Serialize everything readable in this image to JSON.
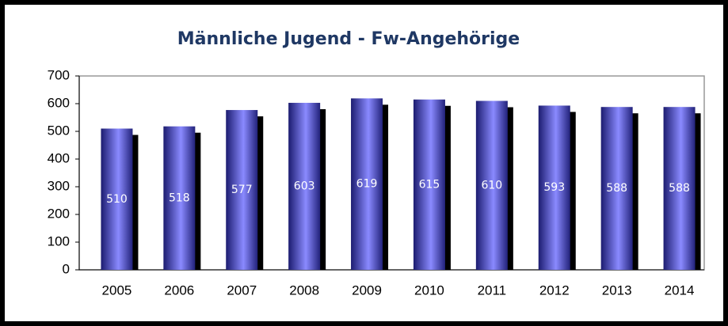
{
  "chart_data": {
    "type": "bar",
    "title": "Männliche Jugend -  Fw-Angehörige",
    "categories": [
      "2005",
      "2006",
      "2007",
      "2008",
      "2009",
      "2010",
      "2011",
      "2012",
      "2013",
      "2014"
    ],
    "values": [
      510,
      518,
      577,
      603,
      619,
      615,
      610,
      593,
      588,
      588
    ],
    "color": "#5a5ae0",
    "ylim": [
      0,
      700
    ],
    "yticks": [
      0,
      100,
      200,
      300,
      400,
      500,
      600,
      700
    ],
    "grid": false
  }
}
